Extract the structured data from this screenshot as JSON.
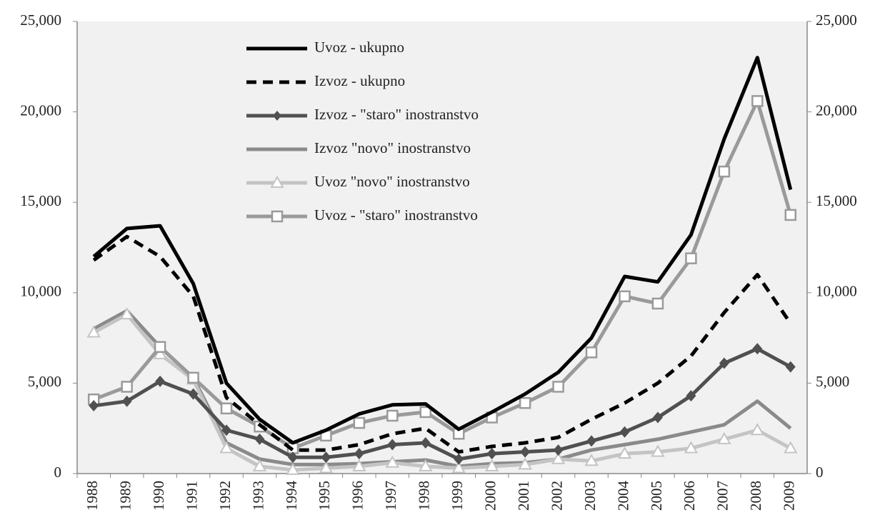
{
  "chart_data": {
    "type": "line",
    "categories": [
      "1988",
      "1989",
      "1990",
      "1991",
      "1992",
      "1993",
      "1994",
      "1995",
      "1996",
      "1997",
      "1998",
      "1999",
      "2000",
      "2001",
      "2002",
      "2003",
      "2004",
      "2005",
      "2006",
      "2007",
      "2008",
      "2009"
    ],
    "series": [
      {
        "name": "Uvoz - ukupno",
        "color": "#000000",
        "style": "solid",
        "marker": "none",
        "values": [
          12000,
          13550,
          13700,
          10500,
          5000,
          3000,
          1700,
          2400,
          3300,
          3800,
          3850,
          2450,
          3400,
          4400,
          5600,
          7500,
          10900,
          10600,
          13200,
          18500,
          23000,
          15700
        ]
      },
      {
        "name": "Izvoz - ukupno",
        "color": "#000000",
        "style": "dashed",
        "marker": "none",
        "values": [
          11800,
          13100,
          12000,
          9800,
          4200,
          2700,
          1300,
          1300,
          1600,
          2200,
          2500,
          1200,
          1500,
          1700,
          2000,
          3000,
          3900,
          5000,
          6500,
          8900,
          11000,
          8300
        ]
      },
      {
        "name": "Izvoz - \"staro\" inostranstvo",
        "color": "#505050",
        "style": "solid",
        "marker": "diamond",
        "values": [
          3750,
          4000,
          5100,
          4400,
          2400,
          1900,
          900,
          900,
          1100,
          1600,
          1700,
          800,
          1100,
          1200,
          1300,
          1800,
          2300,
          3100,
          4300,
          6100,
          6900,
          5900
        ]
      },
      {
        "name": "Izvoz \"novo\" inostranstvo",
        "color": "#8a8a8a",
        "style": "solid",
        "marker": "none",
        "values": [
          8000,
          9000,
          7000,
          5300,
          1700,
          800,
          500,
          500,
          550,
          650,
          750,
          400,
          550,
          600,
          800,
          1300,
          1600,
          1900,
          2300,
          2700,
          4000,
          2500
        ]
      },
      {
        "name": "Uvoz \"novo\" inostranstvo",
        "color": "#c4c4c4",
        "style": "solid",
        "marker": "triangle",
        "values": [
          7800,
          8800,
          6600,
          5200,
          1400,
          400,
          200,
          300,
          400,
          600,
          400,
          300,
          400,
          500,
          800,
          700,
          1100,
          1200,
          1400,
          1900,
          2400,
          1400
        ]
      },
      {
        "name": "Uvoz - \"staro\" inostranstvo",
        "color": "#9a9a9a",
        "style": "solid",
        "marker": "square",
        "values": [
          4100,
          4800,
          7000,
          5300,
          3600,
          2600,
          1400,
          2100,
          2800,
          3200,
          3400,
          2200,
          3100,
          3900,
          4800,
          6700,
          9800,
          9400,
          11900,
          16700,
          20600,
          14300
        ]
      }
    ],
    "ylim": [
      0,
      25000
    ],
    "yticks": [
      0,
      {
        "value": 5000,
        "label": "5,000"
      },
      {
        "value": 10000,
        "label": "10,000"
      },
      {
        "value": 15000,
        "label": "15,000"
      },
      {
        "value": 20000,
        "label": "20,000"
      },
      {
        "value": 25000,
        "label": "25,000"
      }
    ],
    "y2lim": [
      0,
      25000
    ],
    "y2ticks": [
      0,
      {
        "value": 5000,
        "label": "5,000"
      },
      {
        "value": 10000,
        "label": "10,000"
      },
      {
        "value": 15000,
        "label": "15,000"
      },
      {
        "value": 20000,
        "label": "20,000"
      },
      {
        "value": 25000,
        "label": "25,000"
      }
    ],
    "legend": "upper-left",
    "grid": false
  }
}
